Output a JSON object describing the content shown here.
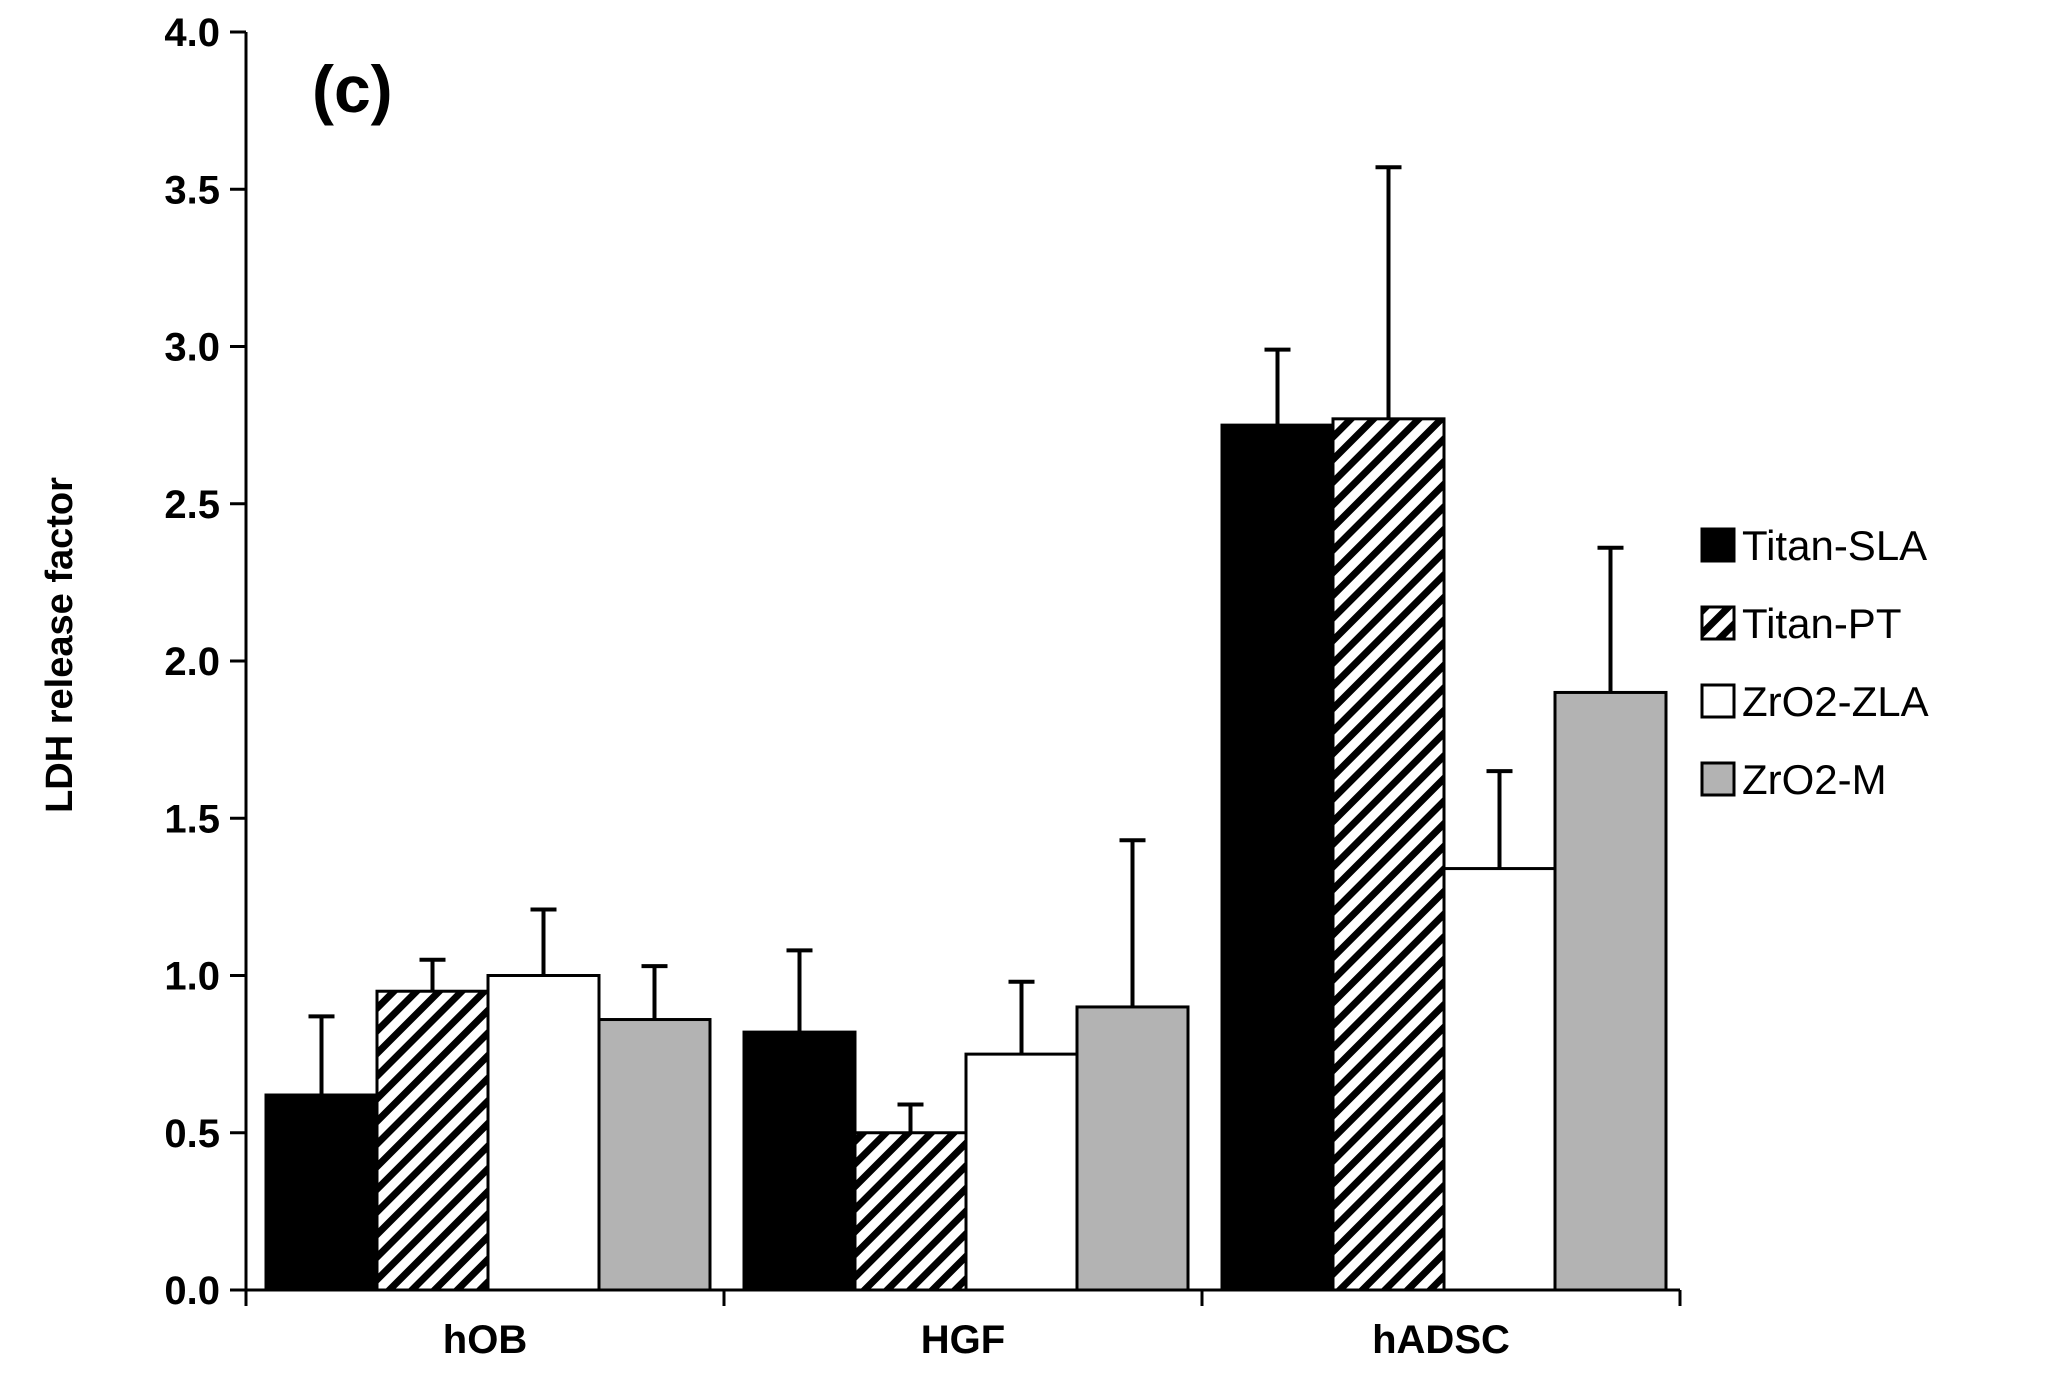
{
  "chart_data": {
    "type": "bar",
    "panel_label": "(c)",
    "title": "",
    "xlabel": "",
    "ylabel": "LDH release factor",
    "ylim": [
      0,
      4.0
    ],
    "yticks": [
      "0.0",
      "0.5",
      "1.0",
      "1.5",
      "2.0",
      "2.5",
      "3.0",
      "3.5",
      "4.0"
    ],
    "grid": false,
    "legend_position": "right",
    "categories": [
      "hOB",
      "HGF",
      "hADSC"
    ],
    "series": [
      {
        "name": "Titan-SLA",
        "fill": "solid-black",
        "color": "#000000",
        "values": [
          0.62,
          0.82,
          2.75
        ],
        "errors": [
          0.25,
          0.26,
          0.24
        ]
      },
      {
        "name": "Titan-PT",
        "fill": "diagonal-hatch",
        "color": "#000000",
        "values": [
          0.95,
          0.5,
          2.77
        ],
        "errors": [
          0.1,
          0.09,
          0.8
        ]
      },
      {
        "name": "ZrO2-ZLA",
        "fill": "white",
        "color": "#ffffff",
        "values": [
          1.0,
          0.75,
          1.34
        ],
        "errors": [
          0.21,
          0.23,
          0.31
        ]
      },
      {
        "name": "ZrO2-M",
        "fill": "gray",
        "color": "#b3b3b3",
        "values": [
          0.86,
          0.9,
          1.9
        ],
        "errors": [
          0.17,
          0.53,
          0.46
        ]
      }
    ]
  }
}
